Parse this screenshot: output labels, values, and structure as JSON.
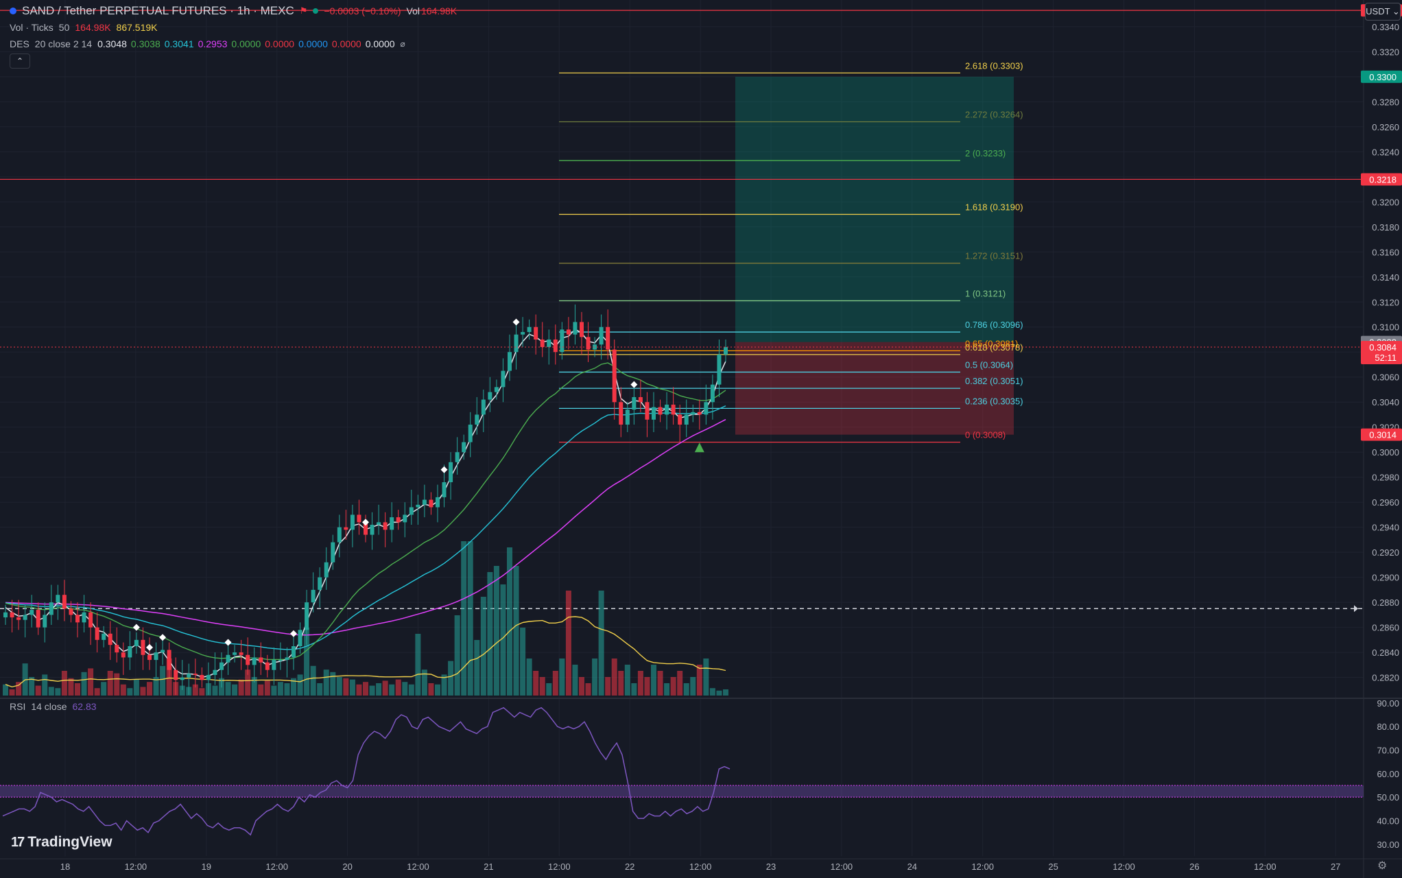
{
  "header": {
    "symbol": "SAND / Tether PERPETUAL FUTURES · 1h · MEXC",
    "change": "−0.0003 (−0.10%)",
    "vol_label": "Vol",
    "vol_value": "164.98K",
    "line2_label": "Vol · Ticks",
    "line2_len": "50",
    "line2_v1": "164.98K",
    "line2_v2": "867.519K",
    "line3_label": "DES",
    "line3_params": "20 close 2 14",
    "line3_values": [
      "0.3048",
      "0.3038",
      "0.3041",
      "0.2953",
      "0.0000",
      "0.0000",
      "0.0000",
      "0.0000",
      "0.0000"
    ],
    "line3_colors": [
      "#e6e8ee",
      "#4caf50",
      "#26c6da",
      "#e040fb",
      "#4caf50",
      "#f23645",
      "#2196f3",
      "#f23645",
      "#e6e8ee"
    ],
    "collapse_glyph": "⌃",
    "currency": "USDT ⌄"
  },
  "rsi_header": {
    "label": "RSI",
    "params": "14 close",
    "value": "62.83"
  },
  "brand": "TradingView",
  "colors": {
    "up": "#26a69a",
    "down": "#f23645",
    "bg": "#161a25",
    "rsi": "#7e57c2",
    "ema_fast": "#e6e8ee",
    "ema_mid": "#4caf50",
    "ema_slow": "#26c6da",
    "sma_long": "#e040fb"
  },
  "chart_data": [
    {
      "type": "candlestick",
      "title": "SAND / Tether PERPETUAL FUTURES · 1h · MEXC",
      "ylim": [
        0.2805,
        0.3358
      ],
      "y_ticks": [
        "0.3340",
        "0.3320",
        "0.3300",
        "0.3280",
        "0.3260",
        "0.3240",
        "0.3220",
        "0.3200",
        "0.3180",
        "0.3160",
        "0.3140",
        "0.3120",
        "0.3100",
        "0.3080",
        "0.3060",
        "0.3040",
        "0.3020",
        "0.3000",
        "0.2980",
        "0.2960",
        "0.2940",
        "0.2920",
        "0.2900",
        "0.2880",
        "0.2860",
        "0.2840",
        "0.2820"
      ],
      "x_ticks": [
        "18",
        "12:00",
        "19",
        "12:00",
        "20",
        "12:00",
        "21",
        "12:00",
        "22",
        "12:00",
        "23",
        "12:00",
        "24",
        "12:00",
        "25",
        "12:00",
        "26",
        "12:00",
        "27"
      ],
      "close_path": [
        0.2872,
        0.2868,
        0.2866,
        0.287,
        0.2874,
        0.286,
        0.287,
        0.288,
        0.2886,
        0.2875,
        0.287,
        0.2864,
        0.2872,
        0.286,
        0.285,
        0.2855,
        0.2846,
        0.284,
        0.2836,
        0.2845,
        0.285,
        0.2838,
        0.2834,
        0.284,
        0.2842,
        0.2826,
        0.2818,
        0.282,
        0.2823,
        0.2822,
        0.2818,
        0.2822,
        0.2826,
        0.2832,
        0.2838,
        0.284,
        0.2838,
        0.283,
        0.2836,
        0.2832,
        0.2826,
        0.2834,
        0.2834,
        0.2836,
        0.2845,
        0.2858,
        0.288,
        0.289,
        0.29,
        0.2912,
        0.2928,
        0.294,
        0.2938,
        0.295,
        0.2944,
        0.2934,
        0.2942,
        0.2944,
        0.2938,
        0.2948,
        0.2944,
        0.295,
        0.2956,
        0.2958,
        0.2962,
        0.2956,
        0.2964,
        0.2976,
        0.2992,
        0.3,
        0.3008,
        0.3022,
        0.303,
        0.3042,
        0.3048,
        0.3052,
        0.3065,
        0.308,
        0.3094,
        0.3096,
        0.31,
        0.309,
        0.3084,
        0.309,
        0.308,
        0.3098,
        0.3094,
        0.3104,
        0.3092,
        0.3082,
        0.3086,
        0.31,
        0.3082,
        0.304,
        0.3022,
        0.3034,
        0.3044,
        0.304,
        0.3026,
        0.3036,
        0.303,
        0.3038,
        0.303,
        0.3022,
        0.303,
        0.3032,
        0.303,
        0.304,
        0.3054,
        0.3078,
        0.3084
      ],
      "last_price": "0.3084",
      "countdown": "52:11",
      "price_tags": [
        {
          "value": "0.3353",
          "color": "#f23645"
        },
        {
          "value": "0.3300",
          "color": "#089981"
        },
        {
          "value": "0.3218",
          "color": "#f23645"
        },
        {
          "value": "0.3088",
          "color": "#787b86"
        },
        {
          "value": "0.3014",
          "color": "#f23645"
        }
      ],
      "horizontal_lines": [
        {
          "value": 0.3353,
          "color": "#f23645"
        },
        {
          "value": 0.3218,
          "color": "#f23645"
        },
        {
          "value": 0.2875,
          "color": "#d1d4dc",
          "dashed": true
        }
      ],
      "fibonacci": [
        {
          "ratio": "2.618 (0.3303)",
          "value": 0.3303,
          "color": "#f2d04b"
        },
        {
          "ratio": "2.272 (0.3264)",
          "value": 0.3264,
          "color": "#6f7d3f"
        },
        {
          "ratio": "2 (0.3233)",
          "value": 0.3233,
          "color": "#4caf50"
        },
        {
          "ratio": "1.618 (0.3190)",
          "value": 0.319,
          "color": "#f2d04b"
        },
        {
          "ratio": "1.272 (0.3151)",
          "value": 0.3151,
          "color": "#7f7a3a"
        },
        {
          "ratio": "1 (0.3121)",
          "value": 0.3121,
          "color": "#81c784"
        },
        {
          "ratio": "0.786 (0.3096)",
          "value": 0.3096,
          "color": "#4dd0e1"
        },
        {
          "ratio": "0.65 (0.3081)",
          "value": 0.3081,
          "color": "#ff9800"
        },
        {
          "ratio": "0.618 (0.3078)",
          "value": 0.3078,
          "color": "#f2d04b"
        },
        {
          "ratio": "0.5 (0.3064)",
          "value": 0.3064,
          "color": "#4dd0e1"
        },
        {
          "ratio": "0.382 (0.3051)",
          "value": 0.3051,
          "color": "#4dd0e1"
        },
        {
          "ratio": "0.236 (0.3035)",
          "value": 0.3035,
          "color": "#4dd0e1"
        },
        {
          "ratio": "0 (0.3008)",
          "value": 0.3008,
          "color": "#f23645"
        }
      ],
      "position": {
        "entry": 0.3088,
        "target": 0.33,
        "stop": 0.3014
      }
    },
    {
      "type": "line",
      "title": "RSI",
      "ylim": [
        25,
        92
      ],
      "y_ticks": [
        "90.00",
        "80.00",
        "70.00",
        "60.00",
        "50.00",
        "40.00",
        "30.00"
      ],
      "band": [
        50,
        55
      ],
      "values": [
        42,
        43,
        44,
        45,
        45,
        44,
        46,
        52,
        51,
        50,
        48,
        49,
        48,
        47,
        45,
        44,
        46,
        43,
        40,
        38,
        38,
        39,
        36,
        40,
        38,
        36,
        37,
        35,
        39,
        40,
        42,
        44,
        45,
        47,
        44,
        41,
        43,
        41,
        38,
        37,
        39,
        37,
        36,
        37,
        37,
        36,
        34,
        40,
        42,
        44,
        45,
        47,
        45,
        44,
        46,
        50,
        48,
        51,
        50,
        52,
        53,
        56,
        57,
        55,
        54,
        57,
        68,
        73,
        76,
        78,
        77,
        75,
        78,
        83,
        85,
        84,
        80,
        79,
        83,
        84,
        82,
        80,
        79,
        78,
        80,
        82,
        79,
        78,
        77,
        79,
        80,
        86,
        87,
        88,
        86,
        84,
        86,
        85,
        84,
        87,
        88,
        86,
        83,
        80,
        79,
        80,
        79,
        80,
        82,
        78,
        73,
        69,
        66,
        70,
        73,
        68,
        57,
        44,
        41,
        41,
        43,
        42,
        42,
        44,
        42,
        44,
        45,
        43,
        44,
        46,
        44,
        45,
        52,
        62,
        63,
        62
      ]
    }
  ]
}
